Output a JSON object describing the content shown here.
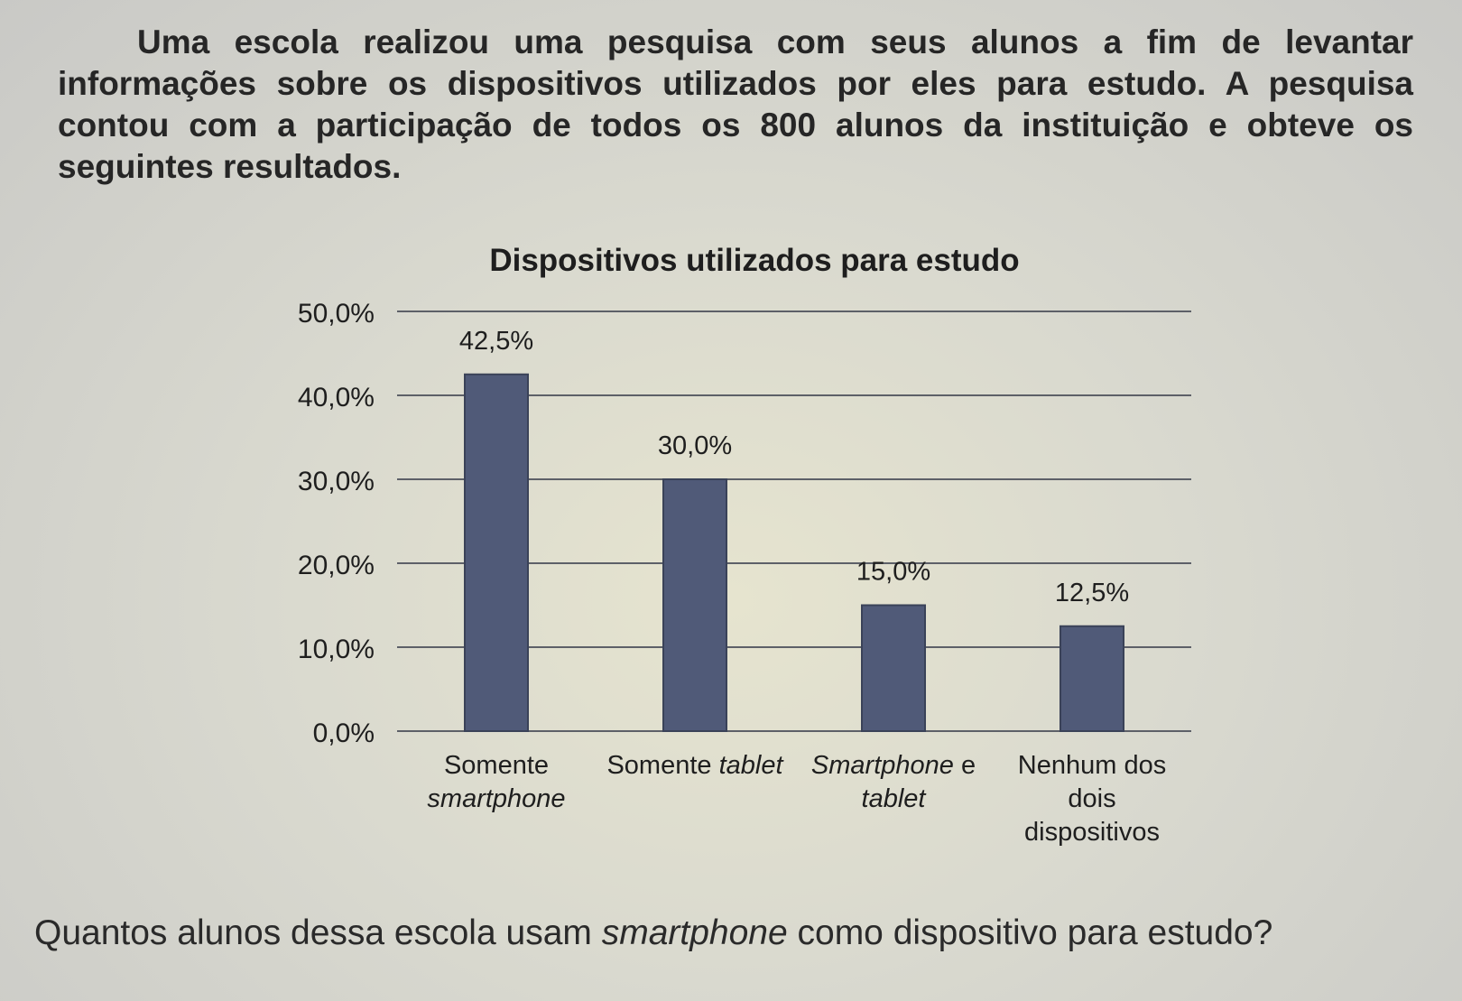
{
  "intro": {
    "text": "Uma escola realizou uma pesquisa com seus alunos a fim de levantar informações sobre os dispositivos utilizados por eles para estudo. A pesquisa contou com a participação de todos os 800 alunos da instituição e obteve os seguintes resultados."
  },
  "chart_data": {
    "type": "bar",
    "title": "Dispositivos utilizados para estudo",
    "categories": [
      "Somente smartphone",
      "Somente tablet",
      "Smartphone e tablet",
      "Nenhum dos dois dispositivos"
    ],
    "values": [
      42.5,
      30.0,
      15.0,
      12.5
    ],
    "data_labels": [
      "42,5%",
      "30,0%",
      "15,0%",
      "12,5%"
    ],
    "ylim": [
      0,
      50
    ],
    "yticks": [
      "0,0%",
      "10,0%",
      "20,0%",
      "30,0%",
      "40,0%",
      "50,0%"
    ],
    "xlabel": "",
    "ylabel": "",
    "grid": true,
    "bar_color": "#505a78"
  },
  "question": {
    "before": "Quantos alunos dessa escola usam ",
    "emphasis": "smartphone",
    "after": " como dispositivo para estudo?"
  }
}
